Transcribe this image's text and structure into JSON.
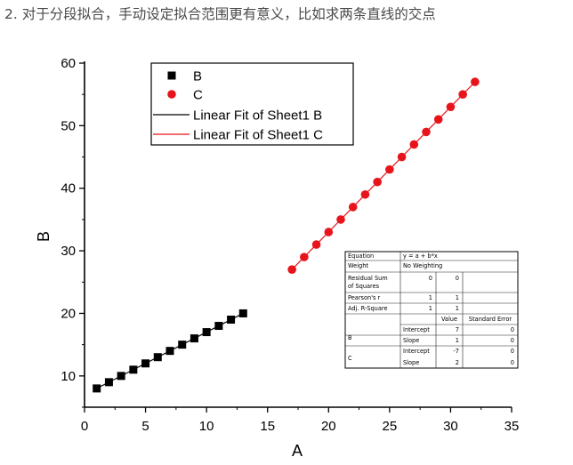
{
  "heading": "2. 对于分段拟合，手动设定拟合范围更有意义，比如求两条直线的交点",
  "chart_data": {
    "type": "scatter",
    "title": "",
    "xlabel": "A",
    "ylabel": "B",
    "xlim": [
      0,
      35
    ],
    "ylim": [
      5,
      60
    ],
    "xticks": [
      0,
      5,
      10,
      15,
      20,
      25,
      30,
      35
    ],
    "yticks": [
      10,
      20,
      30,
      40,
      50,
      60
    ],
    "series": [
      {
        "name": "B",
        "marker": "square",
        "color": "#000000",
        "x": [
          1,
          2,
          3,
          4,
          5,
          6,
          7,
          8,
          9,
          10,
          11,
          12,
          13
        ],
        "y": [
          8,
          9,
          10,
          11,
          12,
          13,
          14,
          15,
          16,
          17,
          18,
          19,
          20
        ]
      },
      {
        "name": "C",
        "marker": "circle",
        "color": "#e8141b",
        "x": [
          17,
          18,
          19,
          20,
          21,
          22,
          23,
          24,
          25,
          26,
          27,
          28,
          29,
          30,
          31,
          32
        ],
        "y": [
          27,
          29,
          31,
          33,
          35,
          37,
          39,
          41,
          43,
          45,
          47,
          49,
          51,
          53,
          55,
          57
        ]
      }
    ],
    "fits": [
      {
        "name": "Linear Fit of Sheet1 B",
        "color": "#000000",
        "intercept": 7,
        "slope": 1,
        "x_range": [
          1,
          13
        ]
      },
      {
        "name": "Linear Fit of Sheet1 C",
        "color": "#e8141b",
        "intercept": -7,
        "slope": 2,
        "x_range": [
          17,
          32
        ]
      }
    ],
    "legend": {
      "position": "top-left",
      "entries": [
        "B",
        "C",
        "Linear Fit of Sheet1 B",
        "Linear Fit of Sheet1 C"
      ]
    },
    "fit_table": {
      "equation_label": "Equation",
      "equation_value": "y = a + b*x",
      "weight_label": "Weight",
      "weight_value": "No Weighting",
      "rss_label_1": "Residual Sum",
      "rss_label_2": "of Squares",
      "rss_values": [
        "0",
        "0"
      ],
      "pearson_label": "Pearson's r",
      "pearson_values": [
        "1",
        "1"
      ],
      "r2_label": "Adj. R-Square",
      "r2_values": [
        "1",
        "1"
      ],
      "value_header": "Value",
      "stderr_header": "Standard Error",
      "groups": [
        {
          "name": "B",
          "rows": [
            {
              "param": "Intercept",
              "value": "7",
              "se": "0"
            },
            {
              "param": "Slope",
              "value": "1",
              "se": "0"
            }
          ]
        },
        {
          "name": "C",
          "rows": [
            {
              "param": "Intercept",
              "value": "-7",
              "se": "0"
            },
            {
              "param": "Slope",
              "value": "2",
              "se": "0"
            }
          ]
        }
      ]
    }
  }
}
